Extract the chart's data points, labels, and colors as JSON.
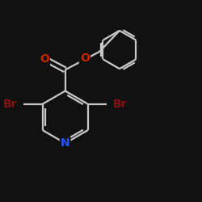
{
  "background_color": "#111111",
  "line_color": "#c8c8c8",
  "atom_colors": {
    "N": "#2255ff",
    "O": "#cc2200",
    "Br": "#8b1010",
    "C": "#c8c8c8"
  },
  "bond_lw": 1.6,
  "font_size": 10
}
